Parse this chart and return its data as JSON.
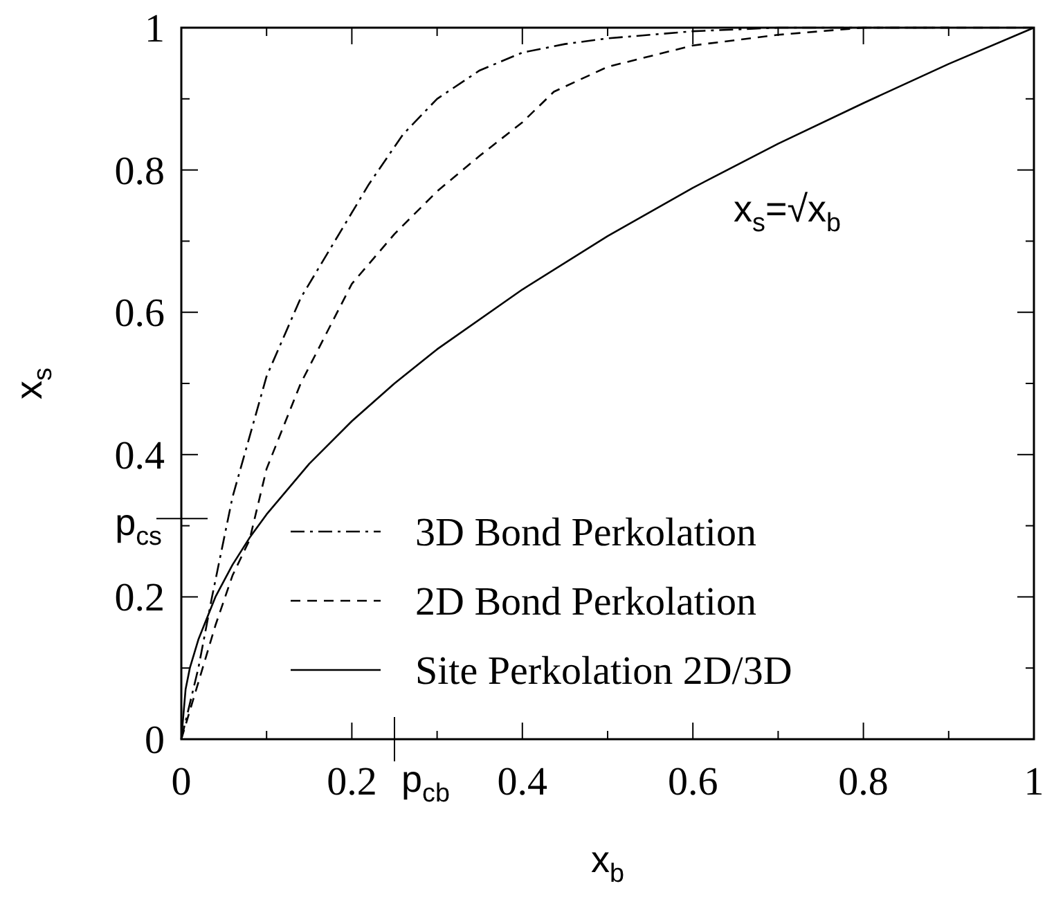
{
  "chart_data": {
    "type": "line",
    "xlabel": "x$_{b}$",
    "ylabel": "x$_{s}$",
    "xlim": [
      0,
      1
    ],
    "ylim": [
      0,
      1
    ],
    "xticks": [
      0,
      {
        "value": 0.1,
        "label": null
      },
      0.2,
      {
        "value": 0.3,
        "label": null
      },
      0.4,
      {
        "value": 0.5,
        "label": null
      },
      0.6,
      {
        "value": 0.7,
        "label": null
      },
      0.8,
      {
        "value": 0.9,
        "label": null
      },
      1
    ],
    "yticks": [
      0,
      {
        "value": 0.1,
        "label": null
      },
      0.2,
      {
        "value": 0.3,
        "label": null
      },
      0.4,
      {
        "value": 0.5,
        "label": null
      },
      0.6,
      {
        "value": 0.7,
        "label": null
      },
      0.8,
      {
        "value": 0.9,
        "label": null
      },
      1
    ],
    "grid": false,
    "legend": "bottom",
    "series": [
      {
        "name": "3D Bond Perkolation",
        "color": "#000000",
        "line_style": "dashdot",
        "x": [
          0,
          0.01,
          0.02,
          0.036,
          0.06,
          0.1,
          0.14,
          0.18,
          0.22,
          0.26,
          0.3,
          0.35,
          0.4,
          0.45,
          0.5,
          0.6,
          0.7,
          0.8,
          0.9
        ],
        "values": [
          0,
          0.05,
          0.1,
          0.2,
          0.34,
          0.51,
          0.62,
          0.7,
          0.78,
          0.85,
          0.9,
          0.94,
          0.965,
          0.977,
          0.985,
          0.995,
          1,
          1,
          1
        ]
      },
      {
        "name": "2D Bond Perkolation",
        "color": "#000000",
        "line_style": "dashed",
        "x": [
          0,
          0.01,
          0.02,
          0.04,
          0.06,
          0.08,
          0.1,
          0.14,
          0.2,
          0.25,
          0.3,
          0.35,
          0.4,
          0.437,
          0.5,
          0.6,
          0.7,
          0.8,
          1
        ],
        "values": [
          0,
          0.04,
          0.08,
          0.16,
          0.23,
          0.28,
          0.38,
          0.5,
          0.64,
          0.71,
          0.77,
          0.82,
          0.867,
          0.91,
          0.945,
          0.975,
          0.99,
          1,
          1
        ]
      },
      {
        "name": "Site Perkolation 2D/3D",
        "color": "#000000",
        "line_style": "solid",
        "x": [
          0,
          0.005,
          0.01,
          0.02,
          0.04,
          0.06,
          0.08,
          0.1,
          0.15,
          0.2,
          0.25,
          0.3,
          0.4,
          0.5,
          0.6,
          0.7,
          0.8,
          0.9,
          1
        ],
        "values": [
          0,
          0.07,
          0.1,
          0.14,
          0.2,
          0.245,
          0.283,
          0.316,
          0.387,
          0.447,
          0.5,
          0.548,
          0.632,
          0.707,
          0.775,
          0.837,
          0.894,
          0.949,
          1
        ]
      }
    ],
    "ref_lines": [
      {
        "axis": "y",
        "value": 0.31,
        "label": "p$_{cs}$"
      },
      {
        "axis": "x",
        "value": 0.25,
        "label": "p$_{cb}$"
      }
    ],
    "annotations": [
      "x$_{s}$=√x$_{b}$"
    ]
  }
}
